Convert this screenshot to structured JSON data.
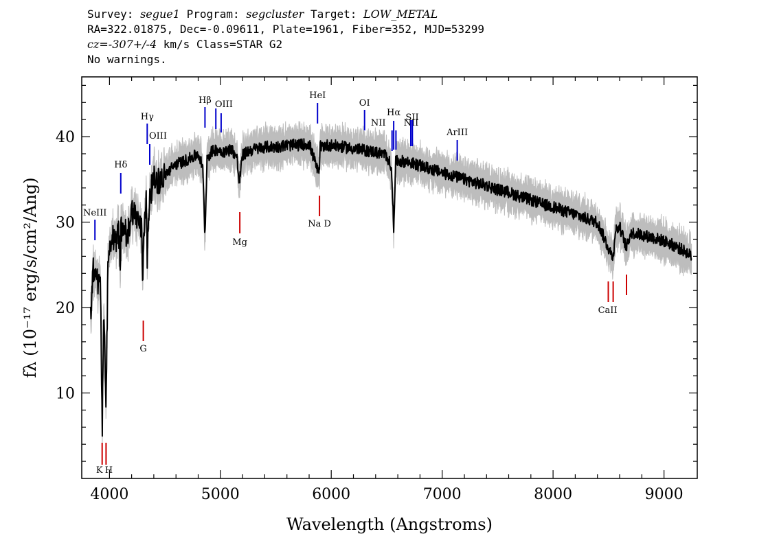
{
  "header": {
    "line1": {
      "survey_label": "Survey: ",
      "survey": "segue1",
      "program_label": " Program: ",
      "program": "segcluster",
      "target_label": " Target: ",
      "target": "LOW_METAL"
    },
    "line2": "RA=322.01875, Dec=-0.09611, Plate=1961, Fiber=352, MJD=53299",
    "line3": {
      "cz": "cz=-307+/-4",
      "rest": " km/s Class=STAR G2"
    },
    "line4": "No warnings."
  },
  "chart_data": {
    "type": "line",
    "title": "",
    "xlabel": "Wavelength (Angstroms)",
    "ylabel": "fλ (10⁻¹⁷ erg/s/cm²/Ang)",
    "xlim": [
      3750,
      9300
    ],
    "ylim": [
      0,
      47
    ],
    "x_ticks": [
      4000,
      5000,
      6000,
      7000,
      8000,
      9000
    ],
    "y_ticks": [
      10,
      20,
      30,
      40
    ],
    "grid": false,
    "series": [
      {
        "role": "flux",
        "color": "#000000",
        "x": [
          3830,
          3850,
          3870,
          3900,
          3920,
          3934,
          3950,
          3968,
          3985,
          4000,
          4030,
          4060,
          4080,
          4100,
          4102,
          4130,
          4160,
          4200,
          4250,
          4290,
          4300,
          4310,
          4330,
          4340,
          4360,
          4380,
          4400,
          4450,
          4500,
          4550,
          4600,
          4650,
          4700,
          4750,
          4800,
          4840,
          4861,
          4880,
          4920,
          4960,
          5000,
          5050,
          5100,
          5150,
          5170,
          5183,
          5200,
          5250,
          5300,
          5400,
          5500,
          5600,
          5700,
          5800,
          5890,
          5900,
          5950,
          6000,
          6100,
          6200,
          6300,
          6400,
          6500,
          6540,
          6563,
          6580,
          6600,
          6700,
          6800,
          6900,
          7000,
          7100,
          7200,
          7300,
          7400,
          7500,
          7600,
          7700,
          7800,
          7900,
          8000,
          8100,
          8200,
          8300,
          8400,
          8498,
          8542,
          8560,
          8600,
          8662,
          8700,
          8800,
          8900,
          9000,
          9100,
          9200,
          9250
        ],
        "y": [
          19.5,
          24.5,
          24.0,
          22.5,
          23.0,
          5.5,
          20.0,
          7.0,
          24.0,
          26.0,
          28.5,
          27.5,
          30.0,
          24.0,
          29.0,
          30.0,
          28.0,
          31.5,
          30.5,
          29.0,
          23.0,
          29.0,
          33.5,
          25.5,
          33.0,
          34.0,
          35.0,
          34.8,
          35.5,
          36.2,
          36.8,
          37.0,
          37.3,
          37.6,
          38.0,
          36.5,
          28.5,
          37.5,
          38.2,
          38.5,
          38.4,
          38.2,
          38.6,
          37.5,
          34.5,
          36.0,
          37.8,
          38.3,
          38.5,
          38.8,
          38.8,
          39.0,
          39.0,
          39.2,
          35.5,
          38.8,
          39.0,
          39.0,
          38.8,
          38.6,
          38.4,
          38.2,
          37.8,
          36.5,
          29.5,
          37.0,
          37.2,
          37.0,
          36.6,
          36.2,
          35.8,
          35.4,
          35.0,
          34.6,
          34.3,
          33.8,
          33.5,
          33.0,
          32.6,
          32.1,
          31.8,
          31.3,
          30.9,
          30.4,
          30.0,
          27.0,
          25.8,
          29.0,
          29.5,
          27.0,
          28.8,
          28.5,
          28.2,
          27.8,
          27.2,
          26.5,
          26.0
        ]
      }
    ],
    "line_markers": {
      "emission": {
        "color": "#0000cc",
        "lines": [
          {
            "label": "NeIII",
            "x": 3869
          },
          {
            "label": "Hδ",
            "x": 4102
          },
          {
            "label": "Hγ",
            "x": 4340
          },
          {
            "label": "OIII",
            "x": 4363
          },
          {
            "label": "Hβ",
            "x": 4861
          },
          {
            "label": "OIII",
            "x": 4959
          },
          {
            "label": "OIII",
            "x": 5007
          },
          {
            "label": "HeI",
            "x": 5876
          },
          {
            "label": "OI",
            "x": 6300
          },
          {
            "label": "NII",
            "x": 6548
          },
          {
            "label": "Hα",
            "x": 6563
          },
          {
            "label": "NII",
            "x": 6583
          },
          {
            "label": "SII",
            "x": 6717
          },
          {
            "label": "SII",
            "x": 6731
          },
          {
            "label": "ArIII",
            "x": 7136
          }
        ]
      },
      "absorption": {
        "color": "#cc0000",
        "lines": [
          {
            "label": "K",
            "x": 3934
          },
          {
            "label": "H",
            "x": 3969
          },
          {
            "label": "G",
            "x": 4305
          },
          {
            "label": "Mg",
            "x": 5175
          },
          {
            "label": "Na D",
            "x": 5894
          },
          {
            "label": "CaII",
            "x": 8498
          },
          {
            "label": "CaII",
            "x": 8542
          },
          {
            "label": "CaII",
            "x": 8662
          }
        ]
      }
    }
  }
}
